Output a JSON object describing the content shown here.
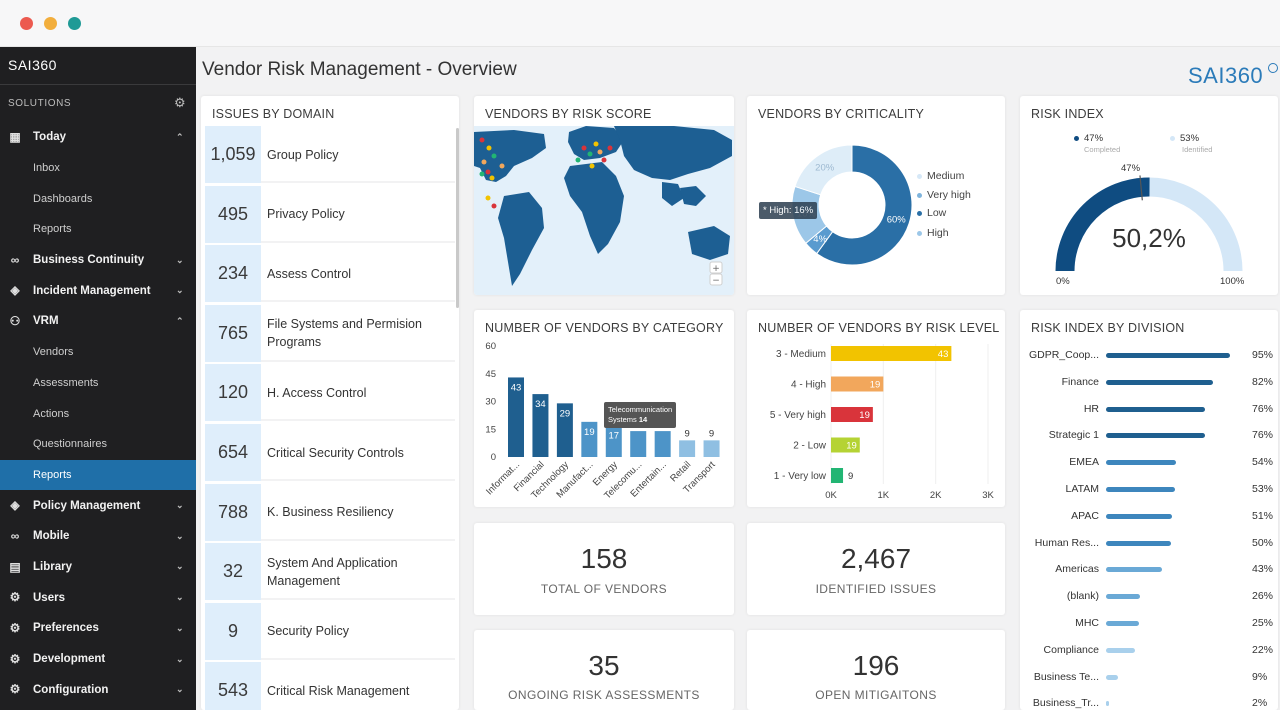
{
  "page": {
    "title": "Vendor Risk Management - Overview",
    "brand": "SAI360"
  },
  "sidebar": {
    "logo": "SAI360",
    "section_label": "SOLUTIONS",
    "items": [
      {
        "label": "Today",
        "icon": "calendar-icon",
        "type": "top",
        "chevron": "up"
      },
      {
        "label": "Inbox",
        "type": "sub"
      },
      {
        "label": "Dashboards",
        "type": "sub"
      },
      {
        "label": "Reports",
        "type": "sub"
      },
      {
        "label": "Business Continuity",
        "icon": "infinity-icon",
        "type": "top",
        "chevron": "down"
      },
      {
        "label": "Incident Management",
        "icon": "diamond-icon",
        "type": "top",
        "chevron": "down"
      },
      {
        "label": "VRM",
        "icon": "user-icon",
        "type": "top",
        "chevron": "up"
      },
      {
        "label": "Vendors",
        "type": "sub"
      },
      {
        "label": "Assessments",
        "type": "sub"
      },
      {
        "label": "Actions",
        "type": "sub"
      },
      {
        "label": "Questionnaires",
        "type": "sub"
      },
      {
        "label": "Reports",
        "type": "sub",
        "active": true
      },
      {
        "label": "Policy Management",
        "icon": "diamond-icon",
        "type": "top",
        "chevron": "down"
      },
      {
        "label": "Mobile",
        "icon": "infinity-icon",
        "type": "top",
        "chevron": "down"
      },
      {
        "label": "Library",
        "icon": "library-icon",
        "type": "top",
        "chevron": "down"
      },
      {
        "label": "Users",
        "icon": "gear-icon",
        "type": "top",
        "chevron": "down"
      },
      {
        "label": "Preferences",
        "icon": "gear-icon",
        "type": "top",
        "chevron": "down"
      },
      {
        "label": "Development",
        "icon": "gear-icon",
        "type": "top",
        "chevron": "down"
      },
      {
        "label": "Configuration",
        "icon": "gear-icon",
        "type": "top",
        "chevron": "down"
      }
    ]
  },
  "issues": {
    "title": "ISSUES BY DOMAIN",
    "rows": [
      {
        "count": "1,059",
        "label": "Group Policy"
      },
      {
        "count": "495",
        "label": "Privacy Policy"
      },
      {
        "count": "234",
        "label": "Assess Control"
      },
      {
        "count": "765",
        "label": "File Systems and Permision Programs"
      },
      {
        "count": "120",
        "label": "H. Access Control"
      },
      {
        "count": "654",
        "label": "Critical Security Controls"
      },
      {
        "count": "788",
        "label": "K. Business Resiliency"
      },
      {
        "count": "32",
        "label": "System And Application Management"
      },
      {
        "count": "9",
        "label": "Security Policy"
      },
      {
        "count": "543",
        "label": "Critical Risk Management"
      }
    ]
  },
  "map_card": {
    "title": "VENDORS BY RISK SCORE",
    "zoom_in": "+",
    "zoom_out": "−"
  },
  "criticality": {
    "title": "VENDORS BY CRITICALITY",
    "tooltip": "* High: 16%",
    "legend": [
      {
        "label": "Medium",
        "color": "#d6e8f7"
      },
      {
        "label": "Very high",
        "color": "#7fb4dc"
      },
      {
        "label": "Low",
        "color": "#2a6fa6"
      },
      {
        "label": "High",
        "color": "#9cc7e8"
      }
    ],
    "chart_data": {
      "type": "pie",
      "slices": [
        {
          "label": "Low",
          "value": 60,
          "text": "60%",
          "color": "#2a6fa6"
        },
        {
          "label": "Very high",
          "value": 4,
          "text": "4%",
          "color": "#5a9bcf"
        },
        {
          "label": "High",
          "value": 16,
          "text": "16%",
          "color": "#9cc7e8"
        },
        {
          "label": "Medium",
          "value": 20,
          "text": "20%",
          "color": "#deedf8"
        }
      ]
    }
  },
  "risk_index": {
    "title": "RISK INDEX",
    "value": "50,2%",
    "completed_pct": "47%",
    "completed_label": "Completed",
    "identified_pct": "53%",
    "identified_label": "Identified",
    "marker_label": "47%",
    "min_label": "0%",
    "max_label": "100%",
    "fill_fraction": 0.502
  },
  "by_category": {
    "title": "NUMBER OF VENDORS BY CATEGORY",
    "tooltip_line1": "Telecommunication",
    "tooltip_line2": "Systems",
    "tooltip_value": "14",
    "chart_data": {
      "type": "bar",
      "categories": [
        "Informat...",
        "Financial",
        "Technology",
        "Manufact...",
        "Energy",
        "Telecomu...",
        "Entertain...",
        "Retail",
        "Transport"
      ],
      "values": [
        43,
        34,
        29,
        19,
        17,
        14,
        14,
        9,
        9
      ],
      "colors": [
        "#1f5f8f",
        "#1f5f8f",
        "#1f5f8f",
        "#4d94c8",
        "#4d94c8",
        "#4d94c8",
        "#4d94c8",
        "#8fbfe2",
        "#8fbfe2"
      ],
      "yticks": [
        "60",
        "45",
        "30",
        "15",
        "0"
      ],
      "ylim": [
        0,
        60
      ]
    }
  },
  "by_risk_level": {
    "title": "NUMBER OF VENDORS BY RISK LEVEL",
    "chart_data": {
      "type": "bar",
      "orientation": "horizontal",
      "categories": [
        "3 - Medium",
        "4 - High",
        "5 - Very high",
        "2 - Low",
        "1 - Very low"
      ],
      "values": [
        43,
        19,
        19,
        19,
        9
      ],
      "colors": [
        "#f2c300",
        "#f2a75c",
        "#d9343b",
        "#b5d334",
        "#22b573"
      ],
      "xticks": [
        "0K",
        "1K",
        "2K",
        "3K"
      ]
    }
  },
  "kpis": [
    {
      "value": "158",
      "label": "TOTAL OF VENDORS"
    },
    {
      "value": "2,467",
      "label": "IDENTIFIED ISSUES"
    },
    {
      "value": "35",
      "label": "ONGOING RISK ASSESSMENTS"
    },
    {
      "value": "196",
      "label": "OPEN MITIGAITONS"
    }
  ],
  "by_division": {
    "title": "RISK INDEX BY DIVISION",
    "chart_data": {
      "type": "bar",
      "orientation": "horizontal",
      "categories": [
        "GDPR_Coop...",
        "Finance",
        "HR",
        "Strategic 1",
        "EMEA",
        "LATAM",
        "APAC",
        "Human Res...",
        "Americas",
        "(blank)",
        "MHC",
        "Compliance",
        "Business Te...",
        "Business_Tr..."
      ],
      "values": [
        95,
        82,
        76,
        76,
        54,
        53,
        51,
        50,
        43,
        26,
        25,
        22,
        9,
        2
      ],
      "labels": [
        "95%",
        "82%",
        "76%",
        "76%",
        "54%",
        "53%",
        "51%",
        "50%",
        "43%",
        "26%",
        "25%",
        "22%",
        "9%",
        "2%"
      ],
      "colors": [
        "#1f5f8f",
        "#1f5f8f",
        "#1f5f8f",
        "#1f5f8f",
        "#3d86bd",
        "#3d86bd",
        "#3d86bd",
        "#3d86bd",
        "#6aa9d6",
        "#6aa9d6",
        "#6aa9d6",
        "#a9d0ec",
        "#a9d0ec",
        "#a9d0ec"
      ]
    }
  }
}
